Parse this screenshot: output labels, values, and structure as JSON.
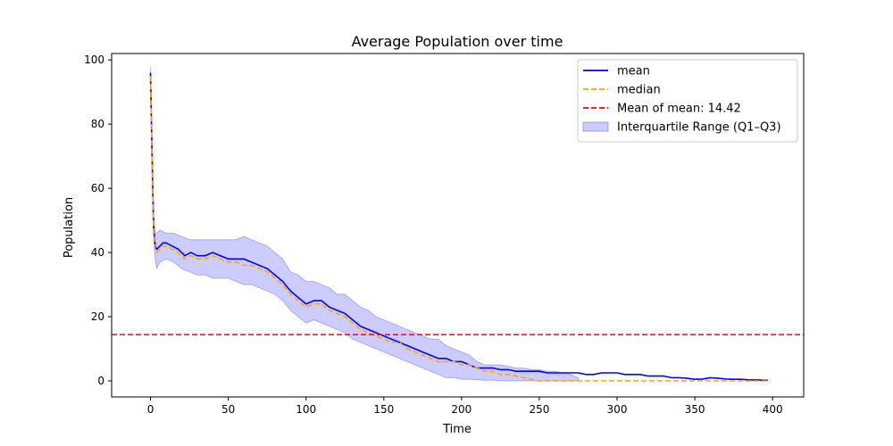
{
  "chart_data": {
    "type": "line",
    "title": "Average Population over time",
    "xlabel": "Time",
    "ylabel": "Population",
    "xlim": [
      -25,
      420
    ],
    "ylim": [
      -5,
      102
    ],
    "xticks": [
      0,
      50,
      100,
      150,
      200,
      250,
      300,
      350,
      400
    ],
    "yticks": [
      0,
      20,
      40,
      60,
      80,
      100
    ],
    "grid": false,
    "legend_position": "top-right",
    "series": [
      {
        "name": "mean",
        "style": "solid",
        "color": "#0000ff",
        "x": [
          0,
          1,
          2,
          3,
          4,
          6,
          8,
          10,
          14,
          18,
          22,
          26,
          30,
          35,
          40,
          45,
          50,
          55,
          60,
          65,
          70,
          75,
          80,
          85,
          90,
          95,
          100,
          105,
          110,
          115,
          120,
          125,
          130,
          135,
          140,
          145,
          150,
          155,
          160,
          165,
          170,
          175,
          180,
          185,
          190,
          195,
          200,
          205,
          210,
          215,
          220,
          225,
          230,
          235,
          240,
          245,
          250,
          255,
          260,
          265,
          270,
          275,
          280,
          285,
          290,
          295,
          300,
          305,
          310,
          315,
          320,
          325,
          330,
          335,
          340,
          345,
          350,
          355,
          360,
          365,
          370,
          375,
          380,
          385,
          390,
          395,
          397
        ],
        "values": [
          96,
          70,
          48,
          42,
          41,
          42,
          43,
          43,
          42,
          41,
          39,
          40,
          39,
          39,
          40,
          39,
          38,
          38,
          38,
          37,
          36,
          35,
          33,
          31,
          28,
          26,
          24,
          25,
          25,
          23,
          22,
          21,
          19,
          17,
          16,
          15,
          14,
          13,
          12,
          11,
          10,
          9,
          8,
          7,
          7,
          6,
          6,
          5,
          4,
          4,
          4,
          3.5,
          3.5,
          3,
          3,
          3,
          3,
          2.5,
          2.5,
          2.5,
          2.5,
          2.5,
          2,
          2,
          2.5,
          2.5,
          2.5,
          2,
          2,
          2,
          1.5,
          1.5,
          1.5,
          1,
          1,
          0.8,
          0.5,
          0.6,
          1,
          0.8,
          0.6,
          0.5,
          0.5,
          0.3,
          0.3,
          0.2,
          0.2
        ]
      },
      {
        "name": "median",
        "style": "dashed",
        "color": "#ffa500",
        "x": [
          0,
          1,
          2,
          3,
          4,
          6,
          8,
          10,
          14,
          18,
          22,
          26,
          30,
          35,
          40,
          45,
          50,
          55,
          60,
          65,
          70,
          75,
          80,
          85,
          90,
          95,
          100,
          105,
          110,
          115,
          120,
          125,
          130,
          135,
          140,
          145,
          150,
          155,
          160,
          165,
          170,
          175,
          180,
          185,
          190,
          195,
          200,
          205,
          210,
          215,
          220,
          225,
          230,
          235,
          240,
          245,
          250,
          260,
          270,
          280,
          300,
          320,
          340,
          360,
          380,
          397
        ],
        "values": [
          95,
          68,
          47,
          41,
          40,
          41,
          42,
          42,
          41,
          40,
          38,
          39,
          38,
          38,
          39,
          38,
          37,
          37,
          36,
          36,
          35,
          34,
          32,
          30,
          27,
          25,
          23,
          24,
          24,
          22,
          21,
          20,
          18,
          16,
          15,
          14,
          13,
          12,
          12,
          10,
          9,
          8,
          7,
          6,
          6,
          6,
          5,
          5,
          4,
          3,
          3,
          2,
          2,
          1.5,
          1,
          0.5,
          0,
          0,
          0,
          0,
          0,
          0,
          0,
          0,
          0,
          0
        ]
      },
      {
        "name": "Mean of mean: 14.42",
        "style": "dashed",
        "color": "#ff0000",
        "type": "hline",
        "y": 14.42
      }
    ],
    "band": {
      "name": "Interquartile Range (Q1–Q3)",
      "color": "#0000ff",
      "x": [
        0,
        1,
        2,
        3,
        4,
        6,
        10,
        15,
        20,
        25,
        30,
        35,
        40,
        45,
        50,
        55,
        60,
        65,
        70,
        75,
        80,
        85,
        90,
        95,
        100,
        105,
        110,
        115,
        120,
        125,
        130,
        135,
        140,
        145,
        150,
        155,
        160,
        165,
        170,
        175,
        180,
        185,
        190,
        195,
        200,
        205,
        210,
        215,
        220,
        225,
        230,
        235,
        240,
        245,
        250,
        255,
        260,
        265,
        270,
        275
      ],
      "q1": [
        93,
        65,
        44,
        38,
        35,
        37,
        38,
        37,
        35,
        34,
        33,
        33,
        32,
        32,
        32,
        31,
        30,
        30,
        29,
        28,
        27,
        25,
        22,
        20,
        18,
        19,
        18,
        17,
        16,
        15,
        13,
        12,
        11,
        10,
        9,
        8,
        7,
        6,
        5,
        4,
        3,
        2,
        1,
        1,
        0.5,
        0.5,
        0.3,
        0.2,
        0.2,
        0.1,
        0,
        0,
        0,
        0,
        0,
        0,
        0,
        0,
        0,
        0
      ],
      "q3": [
        98,
        72,
        52,
        46,
        46,
        47,
        46,
        46,
        45,
        44,
        44,
        44,
        44,
        44,
        44,
        44,
        45,
        44,
        43,
        42,
        40,
        38,
        34,
        33,
        31,
        31,
        30,
        29,
        27,
        27,
        25,
        23,
        22,
        20,
        19,
        18,
        17,
        16,
        15,
        14,
        13,
        13,
        11,
        10,
        9,
        8,
        6,
        5,
        5,
        5,
        4.5,
        4,
        4,
        3.5,
        3.5,
        3,
        3,
        2.5,
        2,
        1
      ]
    }
  }
}
